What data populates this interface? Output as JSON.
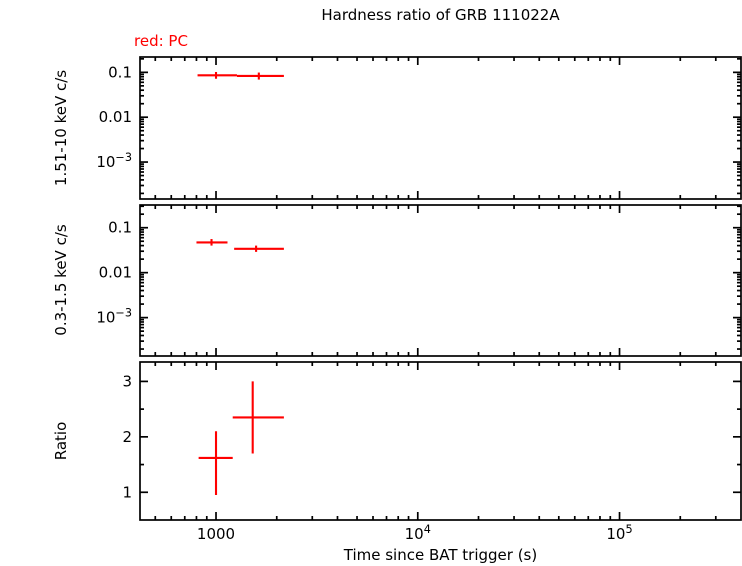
{
  "chart_data": {
    "type": "scatter",
    "title": "Hardness ratio of GRB 111022A",
    "legend": "red: PC",
    "xlabel": "Time since BAT trigger (s)",
    "xscale": "log",
    "xlim": [
      420,
      400000
    ],
    "xticks": [
      {
        "v": 1000,
        "label": "1000"
      },
      {
        "v": 10000,
        "label": "10^4"
      },
      {
        "v": 100000,
        "label": "10^5"
      }
    ],
    "series_color": "#ff0000",
    "grid": false,
    "panels": [
      {
        "name": "hard-band",
        "ylabel": "1.51-10 keV c/s",
        "yscale": "log",
        "ylim": [
          0.00015,
          0.22
        ],
        "yticks": [
          {
            "v": 0.1,
            "label": "0.1"
          },
          {
            "v": 0.01,
            "label": "0.01"
          },
          {
            "v": 0.001,
            "label": "10^−3"
          }
        ],
        "points": [
          {
            "x": 1000,
            "xlo": 810,
            "xhi": 1270,
            "y": 0.086,
            "ylo": 0.072,
            "yhi": 0.102
          },
          {
            "x": 1630,
            "xlo": 1270,
            "xhi": 2170,
            "y": 0.083,
            "ylo": 0.069,
            "yhi": 0.099
          }
        ]
      },
      {
        "name": "soft-band",
        "ylabel": "0.3-1.5 keV c/s",
        "yscale": "log",
        "ylim": [
          0.00014,
          0.32
        ],
        "yticks": [
          {
            "v": 0.1,
            "label": "0.1"
          },
          {
            "v": 0.01,
            "label": "0.01"
          },
          {
            "v": 0.001,
            "label": "10^−3"
          }
        ],
        "points": [
          {
            "x": 950,
            "xlo": 800,
            "xhi": 1140,
            "y": 0.047,
            "ylo": 0.04,
            "yhi": 0.056
          },
          {
            "x": 1580,
            "xlo": 1230,
            "xhi": 2170,
            "y": 0.034,
            "ylo": 0.029,
            "yhi": 0.04
          }
        ]
      },
      {
        "name": "ratio",
        "ylabel": "Ratio",
        "yscale": "linear",
        "ylim": [
          0.5,
          3.35
        ],
        "yticks": [
          {
            "v": 1,
            "label": "1"
          },
          {
            "v": 2,
            "label": "2"
          },
          {
            "v": 3,
            "label": "3"
          }
        ],
        "points": [
          {
            "x": 1000,
            "xlo": 820,
            "xhi": 1210,
            "y": 1.62,
            "ylo": 0.95,
            "yhi": 2.1
          },
          {
            "x": 1520,
            "xlo": 1210,
            "xhi": 2170,
            "y": 2.35,
            "ylo": 1.7,
            "yhi": 3.0
          }
        ]
      }
    ]
  }
}
